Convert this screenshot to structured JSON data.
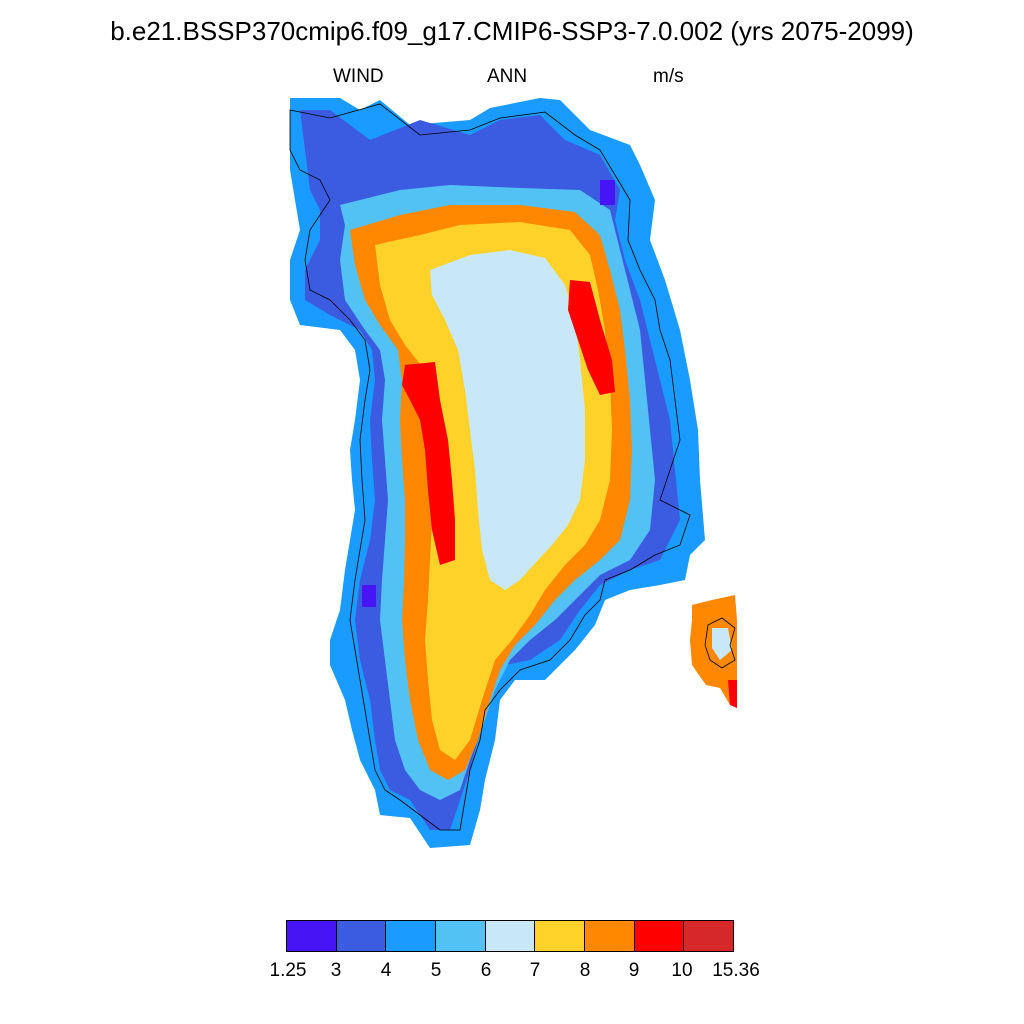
{
  "title": "b.e21.BSSP370cmip6.f09_g17.CMIP6-SSP3-7.0.002 (yrs 2075-2099)",
  "subtitle": {
    "left": "WIND",
    "center": "ANN",
    "right": "m/s"
  },
  "legend": {
    "colors": [
      "#4714f5",
      "#3b5ce0",
      "#1a9bff",
      "#52c2f5",
      "#c8e8f8",
      "#ffd22a",
      "#ff8800",
      "#ff0000",
      "#d6282b"
    ],
    "labels": [
      "1.25",
      "3",
      "4",
      "5",
      "6",
      "7",
      "8",
      "9",
      "10",
      "15.36"
    ]
  },
  "map": {
    "region": "Greenland",
    "variable": "WIND",
    "units": "m/s",
    "field_pattern": "high wind speeds (8-10+ m/s) along the ice-sheet slopes, lower (6-7 m/s) in the interior, lowest (3-5 m/s) at the coasts"
  }
}
